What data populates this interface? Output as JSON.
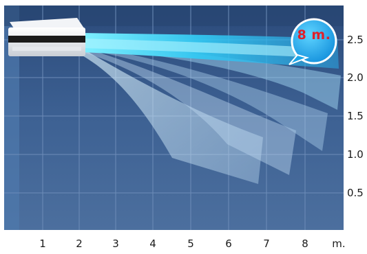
{
  "badge_text": "8 m.",
  "x_ticks": [
    "1",
    "2",
    "3",
    "4",
    "5",
    "6",
    "7",
    "8"
  ],
  "x_unit": "m.",
  "y_ticks": [
    "2.5",
    "2.0",
    "1.5",
    "1.0",
    "0.5"
  ],
  "colors": {
    "background": "#3c5f90",
    "grid": "#6d8cb8",
    "air_stream": "#3fd0f6",
    "badge": "#1ba6e8",
    "badge_text": "#e0202a"
  },
  "icons": [
    "air-conditioner-unit-icon",
    "air-flow-icon"
  ]
}
